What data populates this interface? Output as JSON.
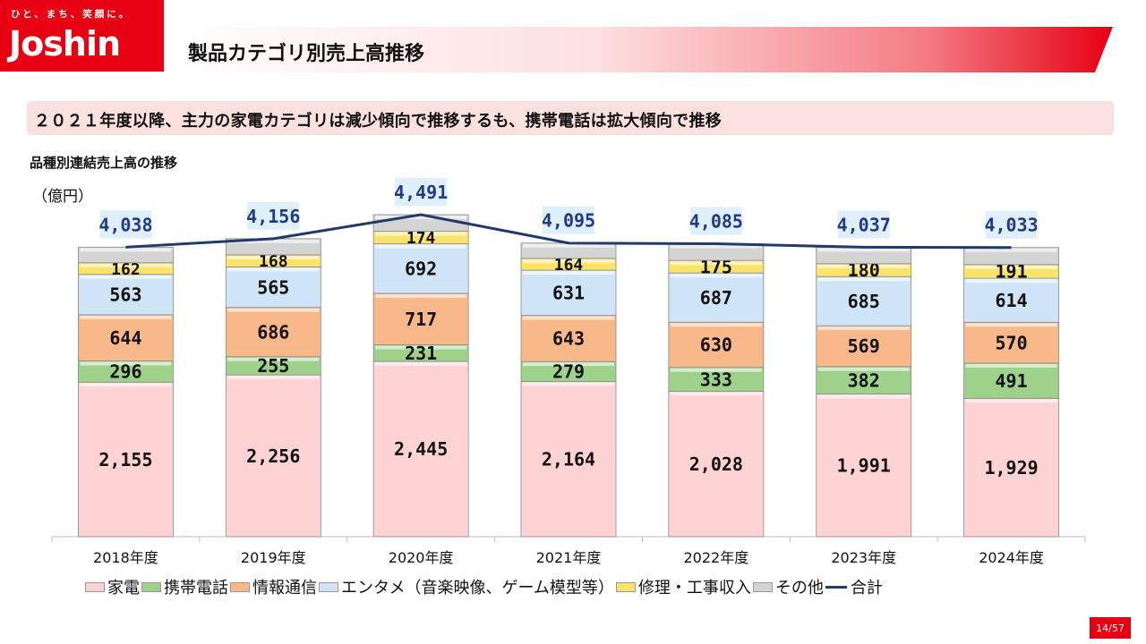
{
  "brand": {
    "tagline": "ひと、まち、笑顔に。",
    "name": "Joshin",
    "color": "#e60012"
  },
  "page_title": "製品カテゴリ別売上高推移",
  "subtitle": "２０２１年度以降、主力の家電カテゴリは減少傾向で推移するも、携帯電話は拡大傾向で推移",
  "chart_heading": "品種別連結売上高の推移",
  "unit_label": "（億円）",
  "page_number": "14/57",
  "chart_data": {
    "type": "bar",
    "stacked": true,
    "categories": [
      "2018年度",
      "2019年度",
      "2020年度",
      "2021年度",
      "2022年度",
      "2023年度",
      "2024年度"
    ],
    "series": [
      {
        "name": "家電",
        "color": "#ffd3d3",
        "values": [
          2155,
          2256,
          2445,
          2164,
          2028,
          1991,
          1929
        ],
        "labels": [
          "2,155",
          "2,256",
          "2,445",
          "2,164",
          "2,028",
          "1,991",
          "1,929"
        ]
      },
      {
        "name": "携帯電話",
        "color": "#9ed28b",
        "values": [
          296,
          255,
          231,
          279,
          333,
          382,
          491
        ],
        "labels": [
          "296",
          "255",
          "231",
          "279",
          "333",
          "382",
          "491"
        ]
      },
      {
        "name": "情報通信",
        "color": "#f9b88a",
        "values": [
          644,
          686,
          717,
          643,
          630,
          569,
          570
        ],
        "labels": [
          "644",
          "686",
          "717",
          "643",
          "630",
          "569",
          "570"
        ]
      },
      {
        "name": "エンタメ（音楽映像、ゲーム模型等）",
        "color": "#cfe4f7",
        "values": [
          563,
          565,
          692,
          631,
          687,
          685,
          614
        ],
        "labels": [
          "563",
          "565",
          "692",
          "631",
          "687",
          "685",
          "614"
        ]
      },
      {
        "name": "修理・工事収入",
        "color": "#fbe36a",
        "values": [
          162,
          168,
          174,
          164,
          175,
          180,
          191
        ],
        "labels": [
          "162",
          "168",
          "174",
          "164",
          "175",
          "180",
          "191"
        ]
      },
      {
        "name": "その他",
        "color": "#d4d4d4",
        "values": [
          218,
          226,
          232,
          214,
          232,
          230,
          238
        ]
      }
    ],
    "total": {
      "name": "合計",
      "color": "#1f3a6b",
      "values": [
        4038,
        4156,
        4491,
        4095,
        4085,
        4037,
        4033
      ],
      "labels": [
        "4,038",
        "4,156",
        "4,491",
        "4,095",
        "4,085",
        "4,037",
        "4,033"
      ]
    },
    "ylim": [
      0,
      4491
    ],
    "legend_position": "bottom"
  }
}
